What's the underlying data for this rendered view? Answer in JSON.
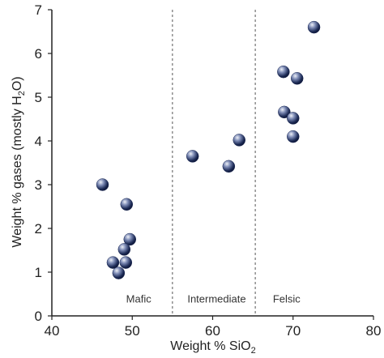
{
  "chart_data": {
    "type": "scatter",
    "title": "",
    "xlabel": "Weight % SiO",
    "xlabel_sub": "2",
    "ylabel_main": "Weight % gases (mostly H",
    "ylabel_sub": "2",
    "ylabel_end": "O)",
    "xlim": [
      40,
      80
    ],
    "ylim": [
      0,
      7
    ],
    "xticks": [
      40,
      50,
      60,
      70,
      80
    ],
    "yticks": [
      0,
      1,
      2,
      3,
      4,
      5,
      6,
      7
    ],
    "grid": false,
    "legend": "none",
    "dividers": [
      55,
      65.3
    ],
    "regions": [
      {
        "label": "Mafic",
        "x": 50.8
      },
      {
        "label": "Intermediate",
        "x": 60.5
      },
      {
        "label": "Felsic",
        "x": 69.2
      }
    ],
    "region_label_y": 0.4,
    "marker_color": "#1c2a55",
    "series": [
      {
        "points": [
          {
            "x": 46.3,
            "y": 3.0
          },
          {
            "x": 49.3,
            "y": 2.55
          },
          {
            "x": 49.7,
            "y": 1.75
          },
          {
            "x": 49.0,
            "y": 1.52
          },
          {
            "x": 47.6,
            "y": 1.22
          },
          {
            "x": 49.2,
            "y": 1.22
          },
          {
            "x": 48.3,
            "y": 0.98
          },
          {
            "x": 57.5,
            "y": 3.65
          },
          {
            "x": 63.3,
            "y": 4.02
          },
          {
            "x": 62.0,
            "y": 3.42
          },
          {
            "x": 72.6,
            "y": 6.6
          },
          {
            "x": 68.8,
            "y": 5.58
          },
          {
            "x": 70.5,
            "y": 5.43
          },
          {
            "x": 68.9,
            "y": 4.66
          },
          {
            "x": 70.0,
            "y": 4.52
          },
          {
            "x": 70.0,
            "y": 4.1
          }
        ]
      }
    ]
  }
}
